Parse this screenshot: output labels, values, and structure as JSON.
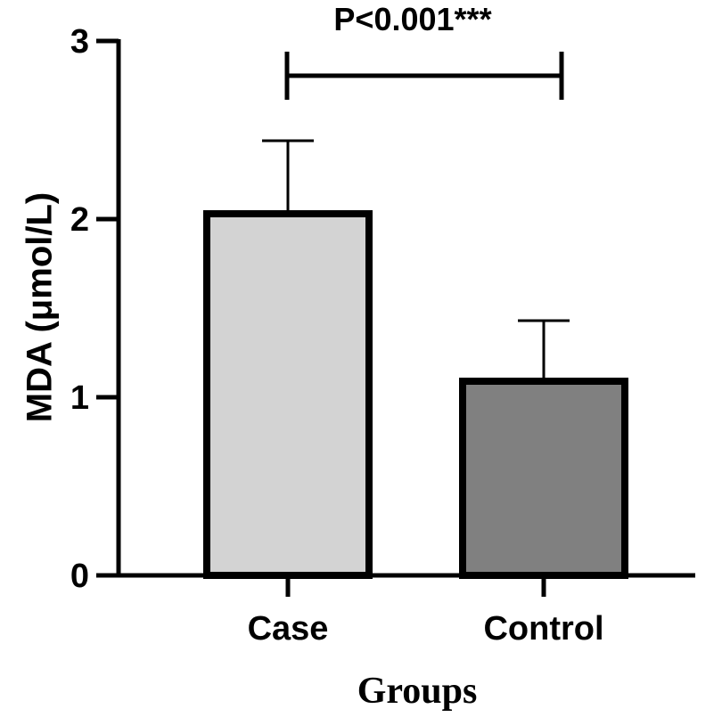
{
  "chart_data": {
    "type": "bar",
    "categories": [
      "Case",
      "Control"
    ],
    "values": [
      2.03,
      1.09
    ],
    "errors": [
      0.41,
      0.34
    ],
    "bar_colors": [
      "#d3d3d3",
      "#808080"
    ],
    "xlabel": "Groups",
    "ylabel": "MDA (μmol/L)",
    "ylim": [
      0,
      3
    ],
    "yticks": [
      "0",
      "1",
      "2",
      "3"
    ],
    "grid": false,
    "significance": {
      "label": "P<0.001***",
      "between": [
        "Case",
        "Control"
      ]
    }
  }
}
